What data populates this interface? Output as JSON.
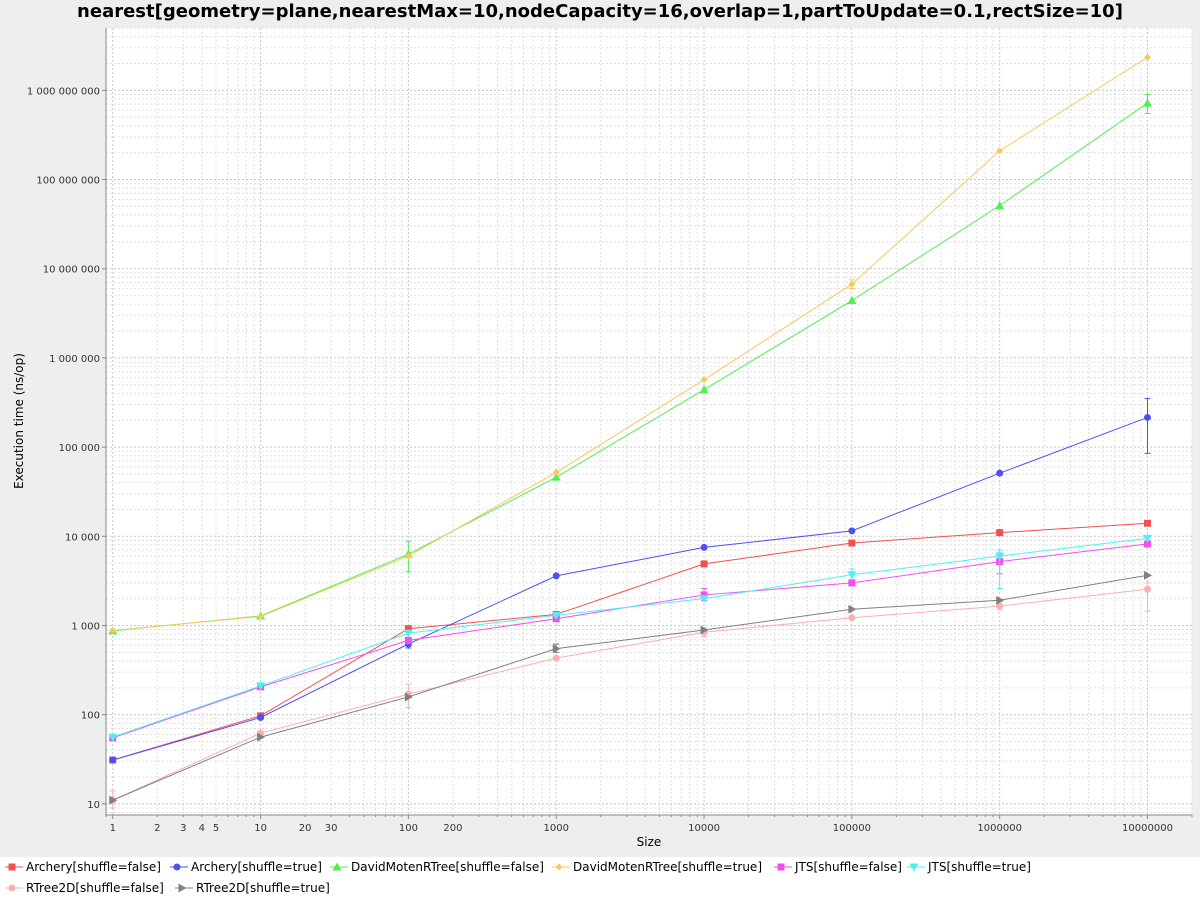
{
  "chart_data": {
    "type": "line",
    "title": "nearest[geometry=plane,nearestMax=10,nodeCapacity=16,overlap=1,partToUpdate=0.1,rectSize=10]",
    "xlabel": "Size",
    "ylabel": "Execution time (ns/op)",
    "xscale": "log",
    "yscale": "log",
    "xlim": [
      0.9,
      20000000
    ],
    "ylim": [
      7.5,
      5000000000
    ],
    "grid": true,
    "legend_position": "bottom",
    "x": [
      1,
      10,
      100,
      1000,
      10000,
      100000,
      1000000,
      10000000
    ],
    "x_tick_labels": [
      {
        "value": 1,
        "label": "1"
      },
      {
        "value": 2,
        "label": "2"
      },
      {
        "value": 3,
        "label": "3"
      },
      {
        "value": 4,
        "label": "4"
      },
      {
        "value": 5,
        "label": "5"
      },
      {
        "value": 10,
        "label": "10"
      },
      {
        "value": 20,
        "label": "20"
      },
      {
        "value": 30,
        "label": "30"
      },
      {
        "value": 100,
        "label": "100"
      },
      {
        "value": 200,
        "label": "200"
      },
      {
        "value": 1000,
        "label": "1000"
      },
      {
        "value": 10000,
        "label": "10000"
      },
      {
        "value": 100000,
        "label": "100000"
      },
      {
        "value": 1000000,
        "label": "1000000"
      },
      {
        "value": 10000000,
        "label": "10000000"
      }
    ],
    "y_tick_labels": [
      {
        "value": 10,
        "label": "10"
      },
      {
        "value": 100,
        "label": "100"
      },
      {
        "value": 1000,
        "label": "1 000"
      },
      {
        "value": 10000,
        "label": "10 000"
      },
      {
        "value": 100000,
        "label": "100 000"
      },
      {
        "value": 1000000,
        "label": "1 000 000"
      },
      {
        "value": 10000000,
        "label": "10 000 000"
      },
      {
        "value": 100000000,
        "label": "100 000 000"
      },
      {
        "value": 1000000000,
        "label": "1 000 000 000"
      }
    ],
    "series": [
      {
        "name": "Archery[shuffle=false]",
        "color": "#f05050",
        "marker": "square",
        "values": [
          31,
          97,
          920,
          1330,
          4900,
          8400,
          11000,
          14000
        ],
        "err": [
          null,
          null,
          null,
          null,
          null,
          null,
          null,
          null
        ]
      },
      {
        "name": "Archery[shuffle=true]",
        "color": "#5050f0",
        "marker": "circle",
        "values": [
          31,
          93,
          620,
          3600,
          7500,
          11500,
          51000,
          215000
        ],
        "err": [
          null,
          null,
          [
            560,
            690
          ],
          null,
          null,
          null,
          null,
          [
            85000,
            350000
          ]
        ]
      },
      {
        "name": "DavidMotenRTree[shuffle=false]",
        "color": "#50f050",
        "marker": "triangle-up",
        "values": [
          870,
          1280,
          6300,
          46000,
          440000,
          4400000,
          51000000,
          720000000
        ],
        "err": [
          null,
          null,
          [
            4000,
            8800
          ],
          null,
          null,
          null,
          null,
          [
            550000000,
            900000000
          ]
        ]
      },
      {
        "name": "DavidMotenRTree[shuffle=true]",
        "color": "#f8c860",
        "marker": "diamond",
        "values": [
          880,
          1260,
          6000,
          52000,
          570000,
          6700000,
          210000000,
          2350000000
        ],
        "err": [
          null,
          null,
          null,
          null,
          null,
          [
            6000000,
            7500000
          ],
          null,
          null
        ]
      },
      {
        "name": "JTS[shuffle=false]",
        "color": "#f050f0",
        "marker": "square",
        "values": [
          55,
          205,
          680,
          1190,
          2200,
          3000,
          5200,
          8200
        ],
        "err": [
          null,
          null,
          null,
          null,
          [
            1900,
            2600
          ],
          null,
          [
            3800,
            6500
          ],
          null
        ]
      },
      {
        "name": "JTS[shuffle=true]",
        "color": "#50f0f0",
        "marker": "triangle-down",
        "values": [
          56,
          210,
          820,
          1300,
          2000,
          3700,
          6000,
          9500
        ],
        "err": [
          null,
          null,
          null,
          null,
          null,
          [
            3300,
            4300
          ],
          [
            2600,
            7000
          ],
          null
        ]
      },
      {
        "name": "RTree2D[shuffle=false]",
        "color": "#f8b0b0",
        "marker": "circle",
        "values": [
          11,
          62,
          170,
          430,
          840,
          1220,
          1650,
          2550
        ],
        "err": [
          [
            9,
            14
          ],
          null,
          [
            120,
            220
          ],
          null,
          [
            750,
            950
          ],
          null,
          [
            1500,
            1850
          ],
          [
            1450,
            3000
          ]
        ]
      },
      {
        "name": "RTree2D[shuffle=true]",
        "color": "#808080",
        "marker": "triangle-right",
        "values": [
          11,
          56,
          158,
          550,
          890,
          1520,
          1920,
          3650
        ],
        "err": [
          null,
          null,
          null,
          [
            500,
            620
          ],
          null,
          null,
          null,
          null
        ]
      }
    ]
  }
}
